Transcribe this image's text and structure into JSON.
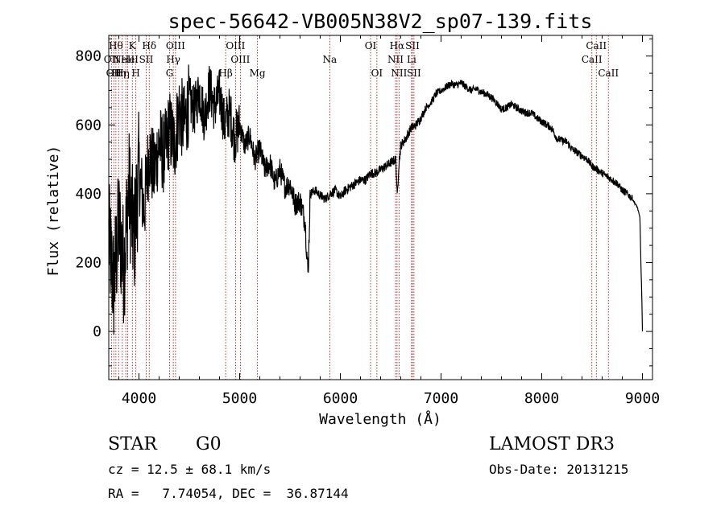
{
  "chart_data": {
    "type": "line",
    "title": "spec-56642-VB005N38V2_sp07-139.fits",
    "xlabel": "Wavelength (Å)",
    "ylabel": "Flux (relative)",
    "xlim": [
      3700,
      9100
    ],
    "ylim": [
      -140,
      860
    ],
    "xticks": [
      4000,
      5000,
      6000,
      7000,
      8000,
      9000
    ],
    "yticks": [
      0,
      200,
      400,
      600,
      800
    ],
    "line_color": "#000000",
    "marker_color": "#aa0000",
    "series": [
      {
        "name": "flux",
        "x": [
          3700,
          3750,
          3800,
          3850,
          3900,
          3950,
          4000,
          4050,
          4100,
          4150,
          4200,
          4250,
          4300,
          4350,
          4400,
          4450,
          4500,
          4550,
          4600,
          4650,
          4700,
          4750,
          4800,
          4850,
          4900,
          4950,
          5000,
          5050,
          5100,
          5150,
          5200,
          5250,
          5300,
          5350,
          5400,
          5450,
          5500,
          5550,
          5600,
          5650,
          5680,
          5700,
          5750,
          5800,
          5850,
          5900,
          5950,
          6000,
          6050,
          6100,
          6150,
          6200,
          6250,
          6300,
          6350,
          6400,
          6450,
          6500,
          6550,
          6565,
          6580,
          6600,
          6650,
          6700,
          6750,
          6800,
          6850,
          6900,
          6950,
          7000,
          7050,
          7100,
          7150,
          7200,
          7250,
          7300,
          7350,
          7400,
          7450,
          7500,
          7550,
          7600,
          7650,
          7700,
          7750,
          7800,
          7850,
          7900,
          7950,
          8000,
          8050,
          8100,
          8150,
          8200,
          8250,
          8300,
          8350,
          8400,
          8450,
          8500,
          8550,
          8600,
          8650,
          8700,
          8750,
          8800,
          8850,
          8900,
          8950,
          8975,
          8985,
          8995,
          9000
        ],
        "y": [
          270,
          130,
          310,
          190,
          420,
          260,
          470,
          350,
          520,
          460,
          550,
          510,
          590,
          540,
          640,
          600,
          670,
          640,
          700,
          620,
          710,
          650,
          690,
          600,
          640,
          560,
          600,
          540,
          570,
          500,
          530,
          470,
          490,
          430,
          470,
          420,
          430,
          370,
          380,
          320,
          160,
          400,
          410,
          395,
          385,
          400,
          410,
          390,
          410,
          420,
          430,
          440,
          440,
          460,
          460,
          470,
          480,
          490,
          500,
          390,
          480,
          540,
          560,
          590,
          600,
          620,
          650,
          665,
          690,
          700,
          710,
          720,
          715,
          722,
          710,
          700,
          705,
          695,
          690,
          680,
          665,
          645,
          650,
          660,
          650,
          640,
          635,
          635,
          620,
          610,
          600,
          590,
          560,
          555,
          550,
          530,
          520,
          510,
          500,
          480,
          470,
          460,
          450,
          440,
          430,
          410,
          400,
          385,
          360,
          330,
          200,
          80,
          0
        ]
      }
    ],
    "line_markers": [
      {
        "wavelength": 3727,
        "label": "OII",
        "row": 1
      },
      {
        "wavelength": 3750,
        "label": "OII",
        "row": 2
      },
      {
        "wavelength": 3771,
        "label": "Hθ",
        "row": 0
      },
      {
        "wavelength": 3798,
        "label": "Hη",
        "row": 2
      },
      {
        "wavelength": 3835,
        "label": "Hη",
        "row": 2
      },
      {
        "wavelength": 3869,
        "label": "NeIII",
        "row": 1
      },
      {
        "wavelength": 3889,
        "label": "He",
        "row": 1
      },
      {
        "wavelength": 3934,
        "label": "K",
        "row": 0
      },
      {
        "wavelength": 3969,
        "label": "H",
        "row": 2
      },
      {
        "wavelength": 4072,
        "label": "SII",
        "row": 1
      },
      {
        "wavelength": 4102,
        "label": "Hδ",
        "row": 0
      },
      {
        "wavelength": 4304,
        "label": "G",
        "row": 2
      },
      {
        "wavelength": 4341,
        "label": "Hγ",
        "row": 1
      },
      {
        "wavelength": 4363,
        "label": "OIII",
        "row": 0
      },
      {
        "wavelength": 4861,
        "label": "Hβ",
        "row": 2
      },
      {
        "wavelength": 4959,
        "label": "OIII",
        "row": 0
      },
      {
        "wavelength": 5007,
        "label": "OIII",
        "row": 1
      },
      {
        "wavelength": 5177,
        "label": "Mg",
        "row": 2
      },
      {
        "wavelength": 5895,
        "label": "Na",
        "row": 1
      },
      {
        "wavelength": 6300,
        "label": "OI",
        "row": 0
      },
      {
        "wavelength": 6363,
        "label": "OI",
        "row": 2
      },
      {
        "wavelength": 6548,
        "label": "NII",
        "row": 1
      },
      {
        "wavelength": 6563,
        "label": "Hα",
        "row": 0
      },
      {
        "wavelength": 6583,
        "label": "NII",
        "row": 2
      },
      {
        "wavelength": 6707,
        "label": "Li",
        "row": 1
      },
      {
        "wavelength": 6716,
        "label": "SII",
        "row": 0
      },
      {
        "wavelength": 6731,
        "label": "SII",
        "row": 2
      },
      {
        "wavelength": 8498,
        "label": "CaII",
        "row": 1
      },
      {
        "wavelength": 8542,
        "label": "CaII",
        "row": 0
      },
      {
        "wavelength": 8662,
        "label": "CaII",
        "row": 2
      }
    ]
  },
  "info": {
    "class": "STAR",
    "subclass": "G0",
    "survey": "LAMOST DR3",
    "cz": "cz = 12.5 ± 68.1 km/s",
    "obs_date": "Obs-Date: 20131215",
    "coords": "RA =   7.74054, DEC =  36.87144"
  }
}
